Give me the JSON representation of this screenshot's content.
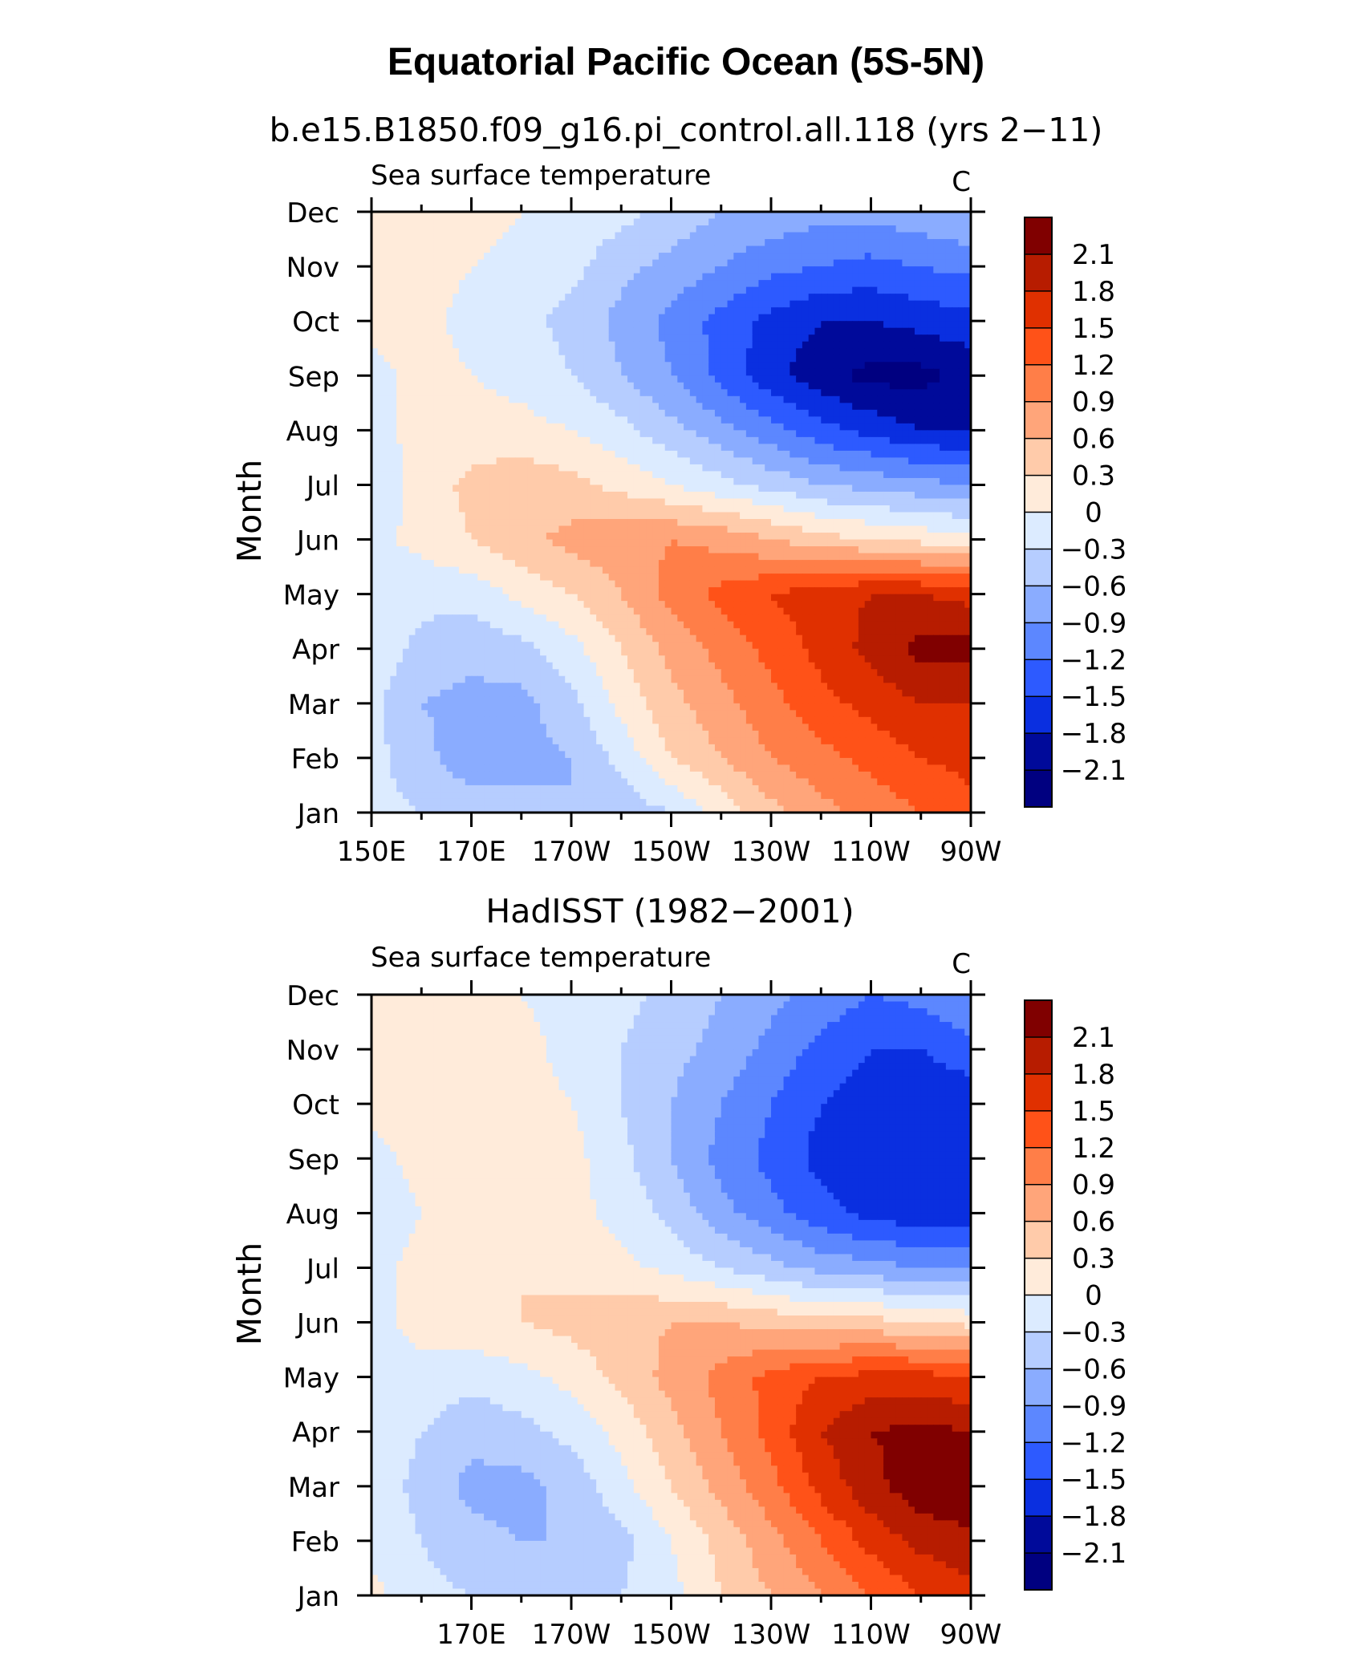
{
  "page": {
    "title": "Equatorial Pacific Ocean (5S-5N)"
  },
  "colorbar": {
    "levels": [
      "2.1",
      "1.8",
      "1.5",
      "1.2",
      "0.9",
      "0.6",
      "0.3",
      "0",
      "−0.3",
      "−0.6",
      "−0.9",
      "−1.2",
      "−1.5",
      "−1.8",
      "−2.1"
    ],
    "colors": [
      "#800000",
      "#B71C00",
      "#E03000",
      "#FF5218",
      "#FF7E48",
      "#FFA57A",
      "#FFCBAA",
      "#FFEBDA",
      "#DCEBFF",
      "#B6CDFF",
      "#8AACFF",
      "#5C87FF",
      "#2D5AFF",
      "#0A2FE0",
      "#000A9A",
      "#000080"
    ]
  },
  "chart_data": [
    {
      "type": "heatmap",
      "title": "b.e15.B1850.f09_g16.pi_control.all.118 (yrs 2−11)",
      "left_label": "Sea surface temperature",
      "right_label": "C",
      "ylabel": "Month",
      "xlabel": "",
      "x_ticks": [
        "150E",
        "170E",
        "170W",
        "150W",
        "130W",
        "110W",
        "90W"
      ],
      "x_tick_values": [
        150,
        170,
        190,
        210,
        230,
        250,
        270
      ],
      "y_ticks": [
        "Jan",
        "Feb",
        "Mar",
        "Apr",
        "May",
        "Jun",
        "Jul",
        "Aug",
        "Sep",
        "Oct",
        "Nov",
        "Dec"
      ],
      "xlim": [
        150,
        270
      ],
      "ylim": [
        1,
        12
      ],
      "x": [
        150,
        160,
        170,
        180,
        190,
        200,
        210,
        220,
        230,
        240,
        250,
        260,
        270
      ],
      "y": [
        "Jan",
        "Feb",
        "Mar",
        "Apr",
        "May",
        "Jun",
        "Jul",
        "Aug",
        "Sep",
        "Oct",
        "Nov",
        "Dec"
      ],
      "z": [
        [
          -0.2,
          -0.3,
          -0.4,
          -0.5,
          -0.6,
          -0.5,
          -0.3,
          0.1,
          0.5,
          0.8,
          1.0,
          1.2,
          1.4
        ],
        [
          -0.2,
          -0.5,
          -0.8,
          -0.7,
          -0.6,
          -0.2,
          0.3,
          0.6,
          0.9,
          1.1,
          1.3,
          1.5,
          1.6
        ],
        [
          -0.2,
          -0.6,
          -0.7,
          -0.7,
          -0.4,
          0.1,
          0.5,
          0.8,
          1.1,
          1.4,
          1.6,
          1.8,
          1.8
        ],
        [
          -0.1,
          -0.4,
          -0.5,
          -0.4,
          -0.1,
          0.3,
          0.7,
          1.0,
          1.3,
          1.6,
          1.9,
          2.2,
          2.2
        ],
        [
          -0.1,
          -0.2,
          -0.2,
          0.1,
          0.3,
          0.6,
          1.0,
          1.3,
          1.5,
          1.7,
          1.8,
          1.8,
          1.7
        ],
        [
          -0.1,
          0.1,
          0.3,
          0.5,
          0.7,
          0.8,
          0.9,
          0.8,
          0.6,
          0.4,
          0.3,
          0.2,
          0.1
        ],
        [
          -0.2,
          0.1,
          0.4,
          0.5,
          0.4,
          0.2,
          0.0,
          -0.2,
          -0.4,
          -0.6,
          -0.7,
          -0.8,
          -0.9
        ],
        [
          -0.1,
          0.1,
          0.1,
          0.1,
          0.0,
          -0.2,
          -0.5,
          -0.8,
          -1.1,
          -1.4,
          -1.6,
          -1.8,
          -1.8
        ],
        [
          -0.1,
          0.1,
          0.0,
          -0.1,
          -0.3,
          -0.6,
          -0.9,
          -1.3,
          -1.7,
          -2.0,
          -2.2,
          -2.2,
          -2.0
        ],
        [
          0.1,
          0.1,
          -0.1,
          -0.2,
          -0.4,
          -0.7,
          -1.0,
          -1.3,
          -1.6,
          -1.8,
          -1.8,
          -1.7,
          -1.6
        ],
        [
          0.1,
          0.1,
          0.0,
          -0.1,
          -0.2,
          -0.5,
          -0.7,
          -0.9,
          -1.1,
          -1.2,
          -1.3,
          -1.2,
          -1.1
        ],
        [
          0.1,
          0.1,
          0.1,
          0.0,
          -0.1,
          -0.2,
          -0.4,
          -0.6,
          -0.7,
          -0.8,
          -0.8,
          -0.7,
          -0.6
        ]
      ]
    },
    {
      "type": "heatmap",
      "title": "HadISST (1982−2001)",
      "left_label": "Sea surface temperature",
      "right_label": "C",
      "ylabel": "Month",
      "xlabel": "",
      "x_ticks": [
        "170E",
        "170W",
        "150W",
        "130W",
        "110W",
        "90W"
      ],
      "x_tick_values": [
        170,
        190,
        210,
        230,
        250,
        270
      ],
      "y_ticks": [
        "Jan",
        "Feb",
        "Mar",
        "Apr",
        "May",
        "Jun",
        "Jul",
        "Aug",
        "Sep",
        "Oct",
        "Nov",
        "Dec"
      ],
      "xlim": [
        150,
        270
      ],
      "ylim": [
        1,
        12
      ],
      "x": [
        150,
        160,
        170,
        180,
        190,
        200,
        210,
        220,
        230,
        240,
        250,
        260,
        270
      ],
      "y": [
        "Jan",
        "Feb",
        "Mar",
        "Apr",
        "May",
        "Jun",
        "Jul",
        "Aug",
        "Sep",
        "Oct",
        "Nov",
        "Dec"
      ],
      "z": [
        [
          0.1,
          -0.2,
          -0.3,
          -0.4,
          -0.5,
          -0.3,
          -0.1,
          0.3,
          0.6,
          0.9,
          1.2,
          1.5,
          1.7
        ],
        [
          -0.1,
          -0.3,
          -0.5,
          -0.6,
          -0.6,
          -0.4,
          0.0,
          0.4,
          0.8,
          1.2,
          1.6,
          1.9,
          2.0
        ],
        [
          -0.1,
          -0.4,
          -0.7,
          -0.7,
          -0.5,
          -0.1,
          0.3,
          0.7,
          1.1,
          1.6,
          2.0,
          2.3,
          2.4
        ],
        [
          -0.1,
          -0.3,
          -0.5,
          -0.4,
          -0.2,
          0.1,
          0.5,
          0.9,
          1.3,
          1.8,
          2.1,
          2.2,
          2.1
        ],
        [
          -0.1,
          -0.1,
          -0.2,
          -0.1,
          0.1,
          0.4,
          0.7,
          1.0,
          1.3,
          1.5,
          1.6,
          1.6,
          1.5
        ],
        [
          -0.1,
          0.1,
          0.2,
          0.3,
          0.4,
          0.5,
          0.6,
          0.6,
          0.5,
          0.4,
          0.4,
          0.3,
          0.2
        ],
        [
          -0.1,
          0.1,
          0.2,
          0.3,
          0.2,
          0.1,
          -0.1,
          -0.3,
          -0.5,
          -0.7,
          -0.8,
          -0.9,
          -0.9
        ],
        [
          -0.2,
          0.0,
          0.1,
          0.2,
          0.1,
          -0.1,
          -0.4,
          -0.8,
          -1.1,
          -1.4,
          -1.6,
          -1.7,
          -1.7
        ],
        [
          -0.1,
          0.1,
          0.2,
          0.3,
          0.1,
          -0.2,
          -0.6,
          -1.0,
          -1.3,
          -1.6,
          -1.8,
          -1.8,
          -1.8
        ],
        [
          0.1,
          0.1,
          0.1,
          0.1,
          0.0,
          -0.3,
          -0.6,
          -0.9,
          -1.2,
          -1.5,
          -1.7,
          -1.8,
          -1.7
        ],
        [
          0.1,
          0.1,
          0.1,
          0.1,
          -0.1,
          -0.3,
          -0.5,
          -0.7,
          -1.0,
          -1.3,
          -1.5,
          -1.5,
          -1.3
        ],
        [
          0.1,
          0.1,
          0.1,
          0.0,
          -0.1,
          -0.2,
          -0.4,
          -0.6,
          -0.8,
          -1.0,
          -1.2,
          -1.1,
          -0.9
        ]
      ]
    }
  ]
}
